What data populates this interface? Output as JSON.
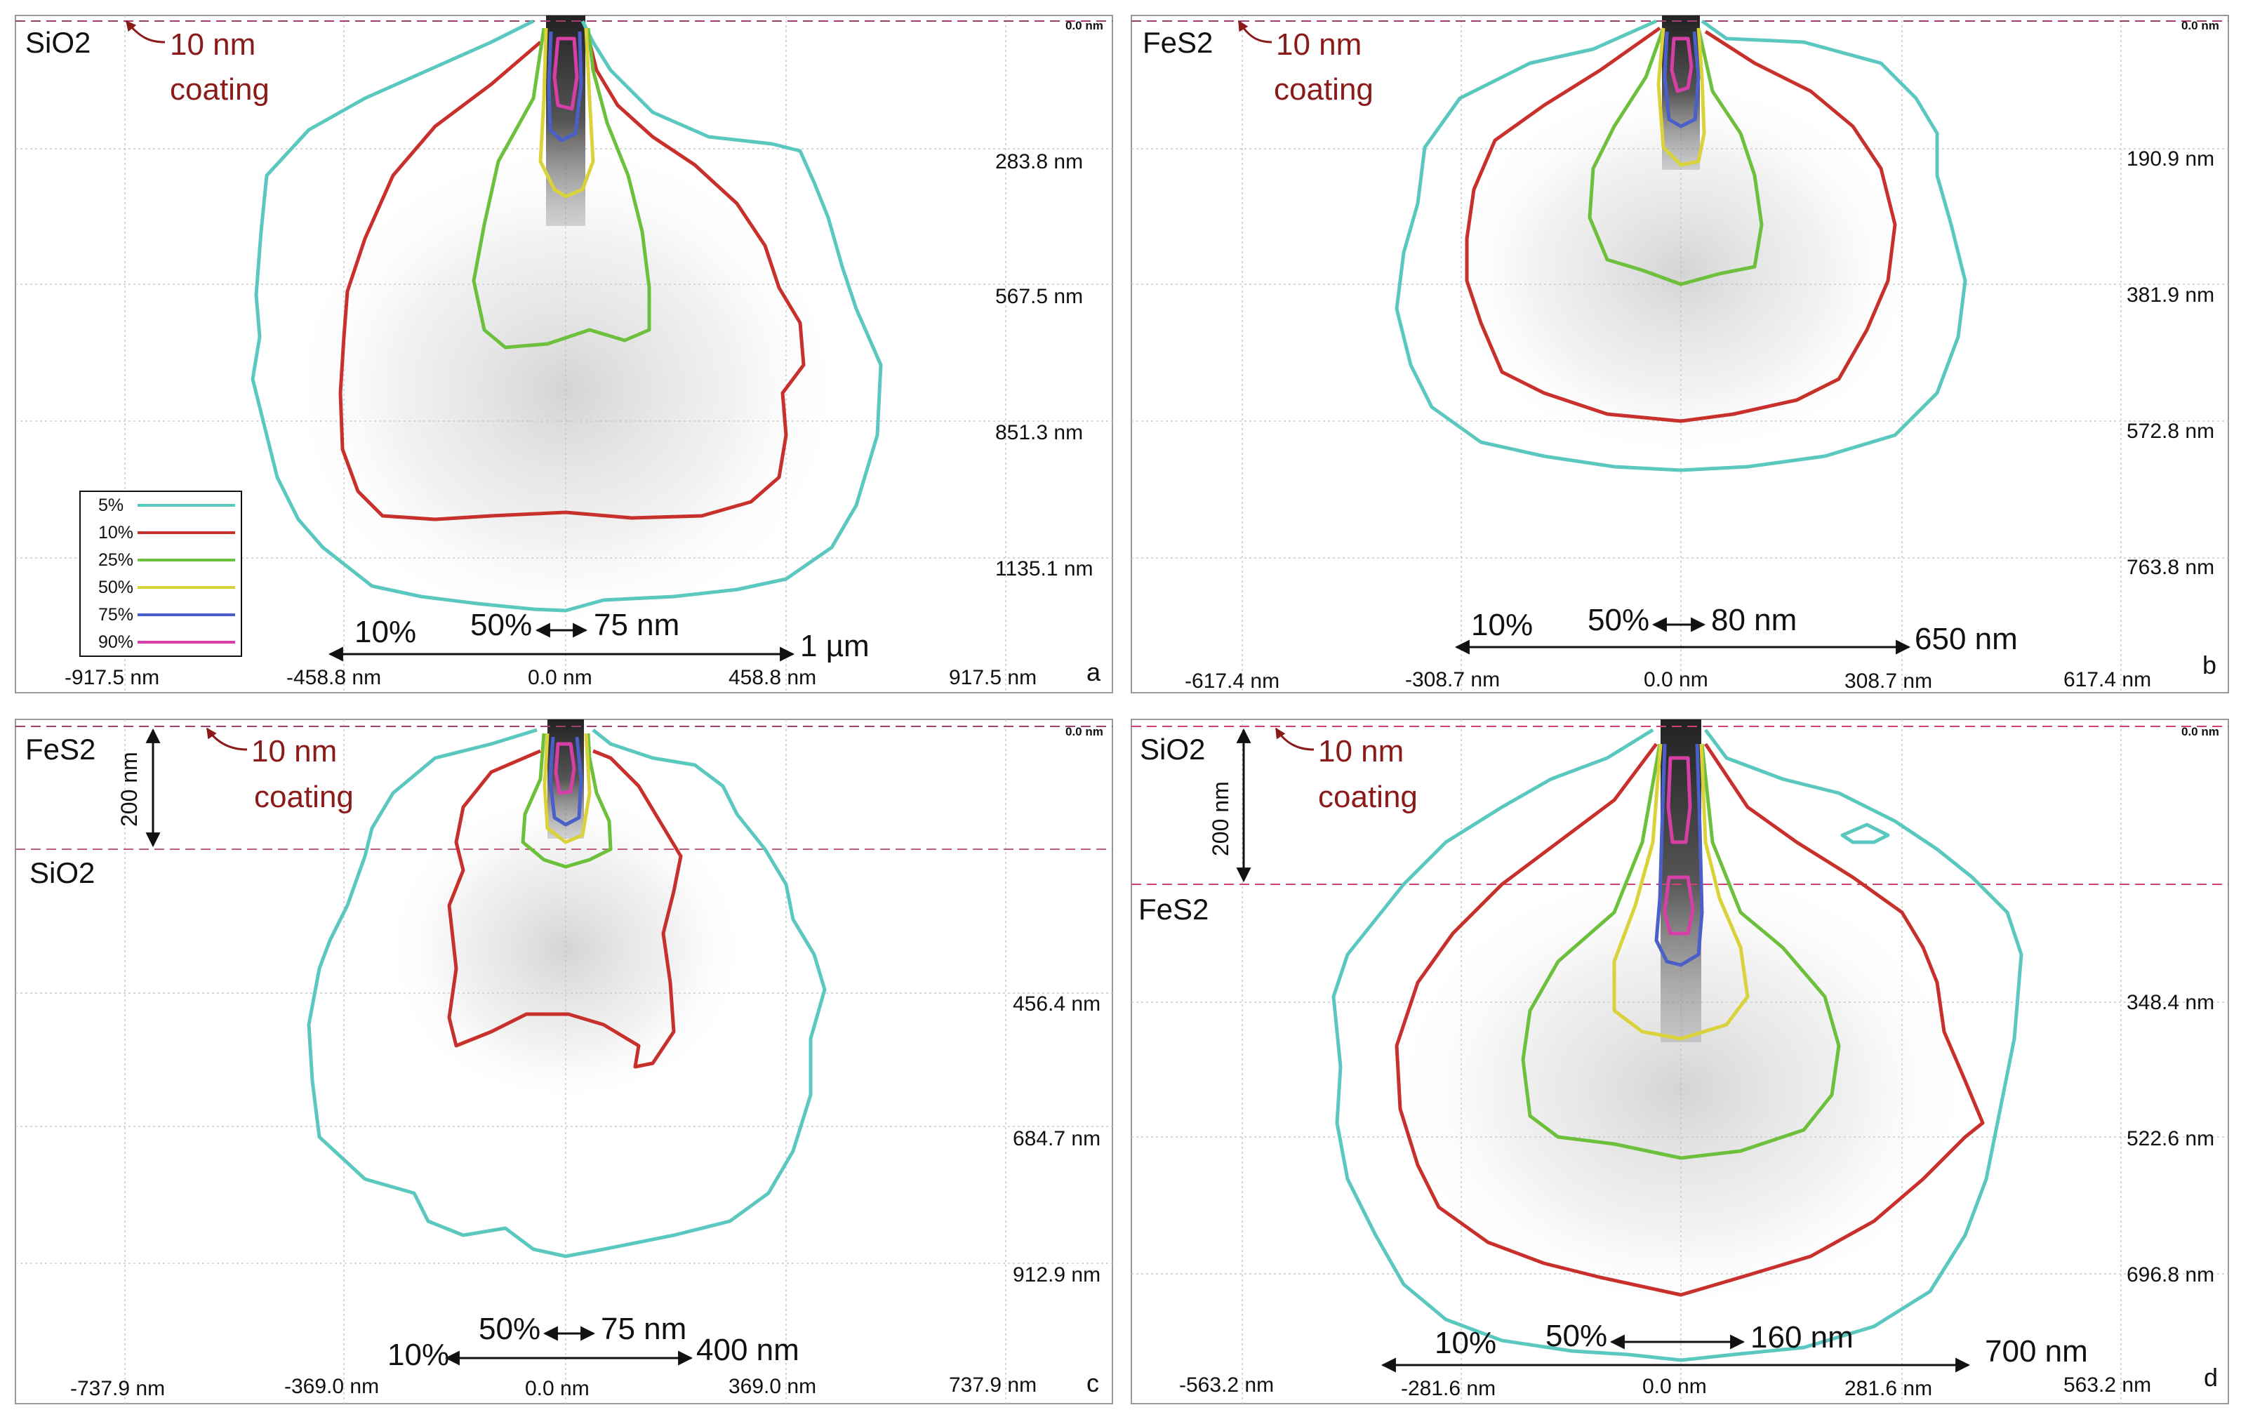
{
  "chart_data": [
    {
      "type": "contour",
      "panel": "a",
      "material_top": "SiO2",
      "coating_label": [
        "10 nm",
        "coating"
      ],
      "x_ticks": [
        "-917.5 nm",
        "-458.8 nm",
        "0.0 nm",
        "458.8 nm",
        "917.5 nm"
      ],
      "y_ticks": [
        "0.0 nm",
        "283.8 nm",
        "567.5 nm",
        "851.3 nm",
        "1135.1 nm"
      ],
      "annotations": {
        "outer_pct": "10%",
        "inner_pct": "50%",
        "inner_width": "75 nm",
        "outer_width": "1 µm"
      },
      "legend": [
        "5%",
        "10%",
        "25%",
        "50%",
        "75%",
        "90%"
      ]
    },
    {
      "type": "contour",
      "panel": "b",
      "material_top": "FeS2",
      "coating_label": [
        "10 nm",
        "coating"
      ],
      "x_ticks": [
        "-617.4 nm",
        "-308.7 nm",
        "0.0 nm",
        "308.7 nm",
        "617.4 nm"
      ],
      "y_ticks": [
        "0.0 nm",
        "190.9 nm",
        "381.9 nm",
        "572.8 nm",
        "763.8 nm"
      ],
      "annotations": {
        "outer_pct": "10%",
        "inner_pct": "50%",
        "inner_width": "80 nm",
        "outer_width": "650 nm"
      }
    },
    {
      "type": "contour",
      "panel": "c",
      "material_top": "FeS2",
      "material_bottom": "SiO2",
      "layer_thickness": "200 nm",
      "coating_label": [
        "10 nm",
        "coating"
      ],
      "x_ticks": [
        "-737.9 nm",
        "-369.0 nm",
        "0.0 nm",
        "369.0 nm",
        "737.9 nm"
      ],
      "y_ticks": [
        "0.0 nm",
        "456.4 nm",
        "684.7 nm",
        "912.9 nm"
      ],
      "annotations": {
        "outer_pct": "10%",
        "inner_pct": "50%",
        "inner_width": "75 nm",
        "outer_width": "400 nm"
      }
    },
    {
      "type": "contour",
      "panel": "d",
      "material_top": "SiO2",
      "material_bottom": "FeS2",
      "layer_thickness": "200 nm",
      "coating_label": [
        "10 nm",
        "coating"
      ],
      "x_ticks": [
        "-563.2 nm",
        "-281.6 nm",
        "0.0 nm",
        "281.6 nm",
        "563.2 nm"
      ],
      "y_ticks": [
        "0.0 nm",
        "348.4 nm",
        "522.6 nm",
        "696.8 nm"
      ],
      "annotations": {
        "outer_pct": "10%",
        "inner_pct": "50%",
        "inner_width": "160 nm",
        "outer_width": "700 nm"
      }
    }
  ],
  "colors": {
    "c5": "#5bc8c0",
    "c10": "#c8302c",
    "c25": "#6cc03c",
    "c50": "#d9d23a",
    "c75": "#4a5fc8",
    "c90": "#d73fa6",
    "coating": "#8b1a1a",
    "dash": "#c06080"
  }
}
